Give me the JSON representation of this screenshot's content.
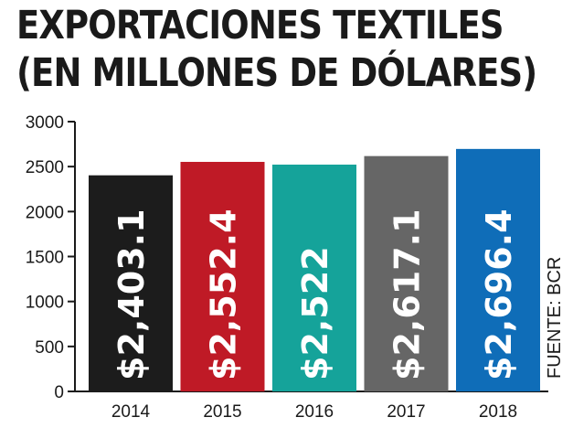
{
  "title": {
    "line1": "EXPORTACIONES TEXTILES",
    "line2": "(EN MILLONES DE DÓLARES)"
  },
  "source": "FUENTE: BCR",
  "chart_data": {
    "type": "bar",
    "categories": [
      "2014",
      "2015",
      "2016",
      "2017",
      "2018"
    ],
    "values": [
      2403.1,
      2552.4,
      2522,
      2617.1,
      2696.4
    ],
    "value_labels": [
      "$2,403.1",
      "$2,552.4",
      "$2,522",
      "$2,617.1",
      "$2,696.4"
    ],
    "colors": [
      "#1c1c1c",
      "#bf1a26",
      "#15a39a",
      "#666666",
      "#0f6db8"
    ],
    "yticks": [
      0,
      500,
      1000,
      1500,
      2000,
      2500,
      3000
    ],
    "ylim": [
      0,
      3000
    ],
    "grid": false,
    "legend": false
  }
}
